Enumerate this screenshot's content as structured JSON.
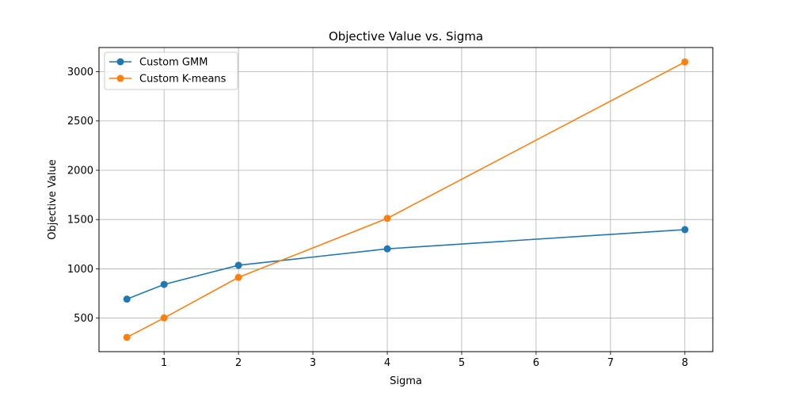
{
  "chart_data": {
    "type": "line",
    "title": "Objective Value vs. Sigma",
    "xlabel": "Sigma",
    "ylabel": "Objective Value",
    "xlim": [
      0.125,
      8.375
    ],
    "ylim": [
      160,
      3245
    ],
    "xticks": [
      1,
      2,
      3,
      4,
      5,
      6,
      7,
      8
    ],
    "yticks": [
      500,
      1000,
      1500,
      2000,
      2500,
      3000
    ],
    "grid": true,
    "legend_position": "top-left",
    "series": [
      {
        "name": "Custom GMM",
        "color": "#1f77b4",
        "marker": "circle",
        "x": [
          0.5,
          1,
          2,
          4,
          8
        ],
        "y": [
          693,
          842,
          1036,
          1203,
          1398
        ]
      },
      {
        "name": "Custom K-means",
        "color": "#ff7f0e",
        "marker": "circle",
        "x": [
          0.5,
          1,
          2,
          4,
          8
        ],
        "y": [
          305,
          502,
          913,
          1512,
          3098
        ]
      }
    ]
  }
}
